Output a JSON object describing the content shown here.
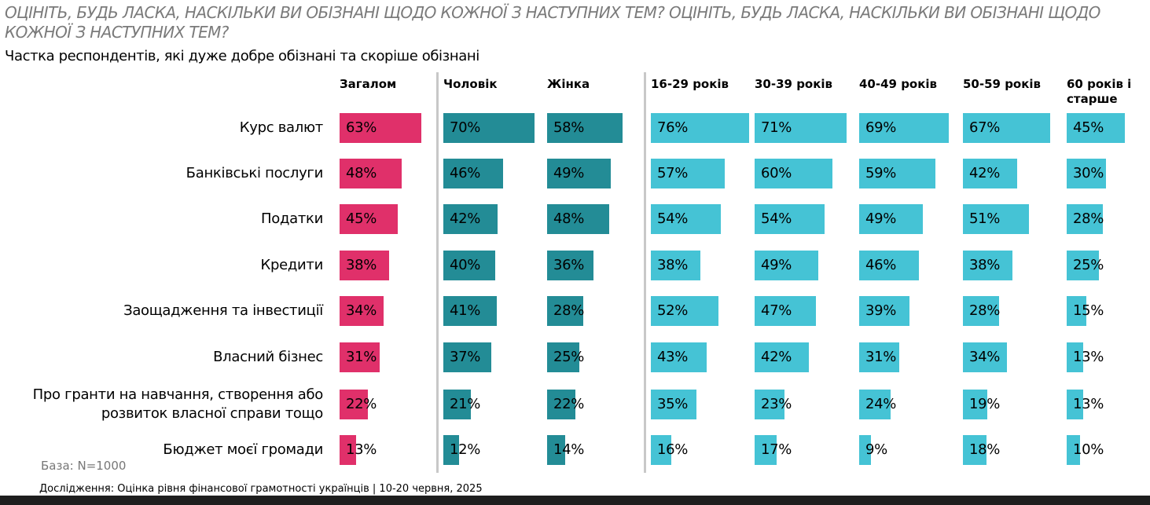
{
  "title": "ОЦІНІТЬ, БУДЬ ЛАСКА, НАСКІЛЬКИ ВИ ОБІЗНАНІ ЩОДО КОЖНОЇ З НАСТУПНИХ ТЕМ? ОЦІНІТЬ, БУДЬ ЛАСКА, НАСКІЛЬКИ ВИ ОБІЗНАНІ ЩОДО КОЖНОЇ З НАСТУПНИХ ТЕМ?",
  "base": "База: N=1000",
  "footer": "Дослідження: Оцінка рівня фінансової грамотності українців | 10-20 червня, 2025",
  "colors": {
    "total": "#e0306a",
    "gender": "#238c96",
    "age": "#45c3d5"
  },
  "chart_data": {
    "type": "bar",
    "title": "Частка респондентів, які дуже добре обізнані та скоріше обізнані",
    "categories": [
      "Курс валют",
      "Банківські послуги",
      "Податки",
      "Кредити",
      "Заощадження та інвестиції",
      "Власний бізнес",
      "Про гранти на навчання, створення або розвиток власної справи тощо",
      "Бюджет моєї громади"
    ],
    "series": [
      {
        "name": "Загалом",
        "group": "total",
        "values": [
          63,
          48,
          45,
          38,
          34,
          31,
          22,
          13
        ]
      },
      {
        "name": "Чоловік",
        "group": "gender",
        "values": [
          70,
          46,
          42,
          40,
          41,
          37,
          21,
          12
        ]
      },
      {
        "name": "Жінка",
        "group": "gender",
        "values": [
          58,
          49,
          48,
          36,
          28,
          25,
          22,
          14
        ]
      },
      {
        "name": "16-29 років",
        "group": "age",
        "values": [
          76,
          57,
          54,
          38,
          52,
          43,
          35,
          16
        ]
      },
      {
        "name": "30-39 років",
        "group": "age",
        "values": [
          71,
          60,
          54,
          49,
          47,
          42,
          23,
          17
        ]
      },
      {
        "name": "40-49 років",
        "group": "age",
        "values": [
          69,
          59,
          49,
          46,
          39,
          31,
          24,
          9
        ]
      },
      {
        "name": "50-59 років",
        "group": "age",
        "values": [
          67,
          42,
          51,
          38,
          28,
          34,
          19,
          18
        ]
      },
      {
        "name": "60 років і старше",
        "group": "age",
        "values": [
          45,
          30,
          28,
          25,
          15,
          13,
          13,
          10
        ]
      }
    ],
    "unit": "%"
  }
}
